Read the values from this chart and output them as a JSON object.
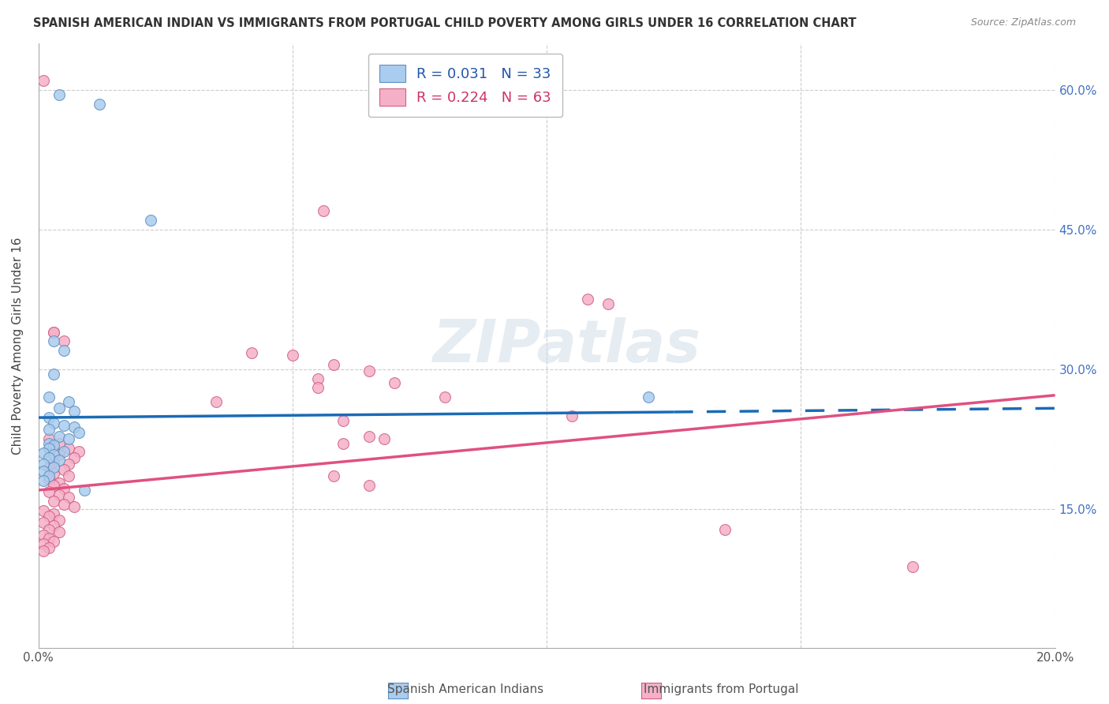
{
  "title": "SPANISH AMERICAN INDIAN VS IMMIGRANTS FROM PORTUGAL CHILD POVERTY AMONG GIRLS UNDER 16 CORRELATION CHART",
  "source": "Source: ZipAtlas.com",
  "ylabel": "Child Poverty Among Girls Under 16",
  "xlim": [
    0.0,
    0.2
  ],
  "ylim": [
    0.0,
    0.65
  ],
  "xticks": [
    0.0,
    0.05,
    0.1,
    0.15,
    0.2
  ],
  "xticklabels": [
    "0.0%",
    "",
    "",
    "",
    "20.0%"
  ],
  "yticks_right": [
    0.15,
    0.3,
    0.45,
    0.6
  ],
  "ytick_labels_right": [
    "15.0%",
    "30.0%",
    "45.0%",
    "60.0%"
  ],
  "blue_scatter": [
    [
      0.004,
      0.595
    ],
    [
      0.012,
      0.585
    ],
    [
      0.022,
      0.46
    ],
    [
      0.003,
      0.33
    ],
    [
      0.005,
      0.32
    ],
    [
      0.003,
      0.295
    ],
    [
      0.002,
      0.27
    ],
    [
      0.006,
      0.265
    ],
    [
      0.004,
      0.258
    ],
    [
      0.007,
      0.255
    ],
    [
      0.002,
      0.248
    ],
    [
      0.003,
      0.242
    ],
    [
      0.005,
      0.24
    ],
    [
      0.007,
      0.238
    ],
    [
      0.002,
      0.235
    ],
    [
      0.008,
      0.232
    ],
    [
      0.004,
      0.228
    ],
    [
      0.006,
      0.225
    ],
    [
      0.002,
      0.22
    ],
    [
      0.003,
      0.218
    ],
    [
      0.002,
      0.215
    ],
    [
      0.005,
      0.212
    ],
    [
      0.001,
      0.21
    ],
    [
      0.003,
      0.208
    ],
    [
      0.002,
      0.205
    ],
    [
      0.004,
      0.202
    ],
    [
      0.001,
      0.198
    ],
    [
      0.003,
      0.195
    ],
    [
      0.001,
      0.19
    ],
    [
      0.002,
      0.185
    ],
    [
      0.001,
      0.18
    ],
    [
      0.009,
      0.17
    ],
    [
      0.12,
      0.27
    ]
  ],
  "pink_scatter": [
    [
      0.001,
      0.61
    ],
    [
      0.056,
      0.47
    ],
    [
      0.003,
      0.34
    ],
    [
      0.005,
      0.33
    ],
    [
      0.042,
      0.318
    ],
    [
      0.05,
      0.315
    ],
    [
      0.058,
      0.305
    ],
    [
      0.065,
      0.298
    ],
    [
      0.055,
      0.29
    ],
    [
      0.07,
      0.285
    ],
    [
      0.055,
      0.28
    ],
    [
      0.08,
      0.27
    ],
    [
      0.035,
      0.265
    ],
    [
      0.003,
      0.34
    ],
    [
      0.108,
      0.375
    ],
    [
      0.112,
      0.37
    ],
    [
      0.105,
      0.25
    ],
    [
      0.06,
      0.245
    ],
    [
      0.065,
      0.228
    ],
    [
      0.068,
      0.225
    ],
    [
      0.06,
      0.22
    ],
    [
      0.002,
      0.225
    ],
    [
      0.004,
      0.22
    ],
    [
      0.006,
      0.215
    ],
    [
      0.008,
      0.212
    ],
    [
      0.004,
      0.208
    ],
    [
      0.007,
      0.205
    ],
    [
      0.003,
      0.2
    ],
    [
      0.006,
      0.198
    ],
    [
      0.002,
      0.195
    ],
    [
      0.005,
      0.192
    ],
    [
      0.003,
      0.188
    ],
    [
      0.006,
      0.185
    ],
    [
      0.002,
      0.182
    ],
    [
      0.004,
      0.178
    ],
    [
      0.003,
      0.175
    ],
    [
      0.005,
      0.172
    ],
    [
      0.002,
      0.168
    ],
    [
      0.004,
      0.165
    ],
    [
      0.006,
      0.162
    ],
    [
      0.003,
      0.158
    ],
    [
      0.005,
      0.155
    ],
    [
      0.007,
      0.152
    ],
    [
      0.001,
      0.148
    ],
    [
      0.003,
      0.145
    ],
    [
      0.002,
      0.142
    ],
    [
      0.004,
      0.138
    ],
    [
      0.001,
      0.135
    ],
    [
      0.003,
      0.132
    ],
    [
      0.002,
      0.128
    ],
    [
      0.004,
      0.125
    ],
    [
      0.001,
      0.122
    ],
    [
      0.002,
      0.118
    ],
    [
      0.003,
      0.115
    ],
    [
      0.001,
      0.112
    ],
    [
      0.002,
      0.108
    ],
    [
      0.001,
      0.105
    ],
    [
      0.058,
      0.185
    ],
    [
      0.065,
      0.175
    ],
    [
      0.135,
      0.128
    ],
    [
      0.172,
      0.088
    ]
  ],
  "blue_line_solid": [
    [
      0.0,
      0.248
    ],
    [
      0.125,
      0.254
    ]
  ],
  "blue_line_dashed": [
    [
      0.125,
      0.254
    ],
    [
      0.2,
      0.258
    ]
  ],
  "pink_line": [
    [
      0.0,
      0.17
    ],
    [
      0.2,
      0.272
    ]
  ],
  "blue_line_color": "#1a6bb5",
  "pink_line_color": "#e05080",
  "watermark": "ZIPatlas",
  "bg_color": "#ffffff",
  "grid_color": "#cccccc",
  "scatter_blue_color": "#aaccee",
  "scatter_blue_edge": "#6090c0",
  "scatter_pink_color": "#f5b0c8",
  "scatter_pink_edge": "#d06080",
  "scatter_size": 100
}
